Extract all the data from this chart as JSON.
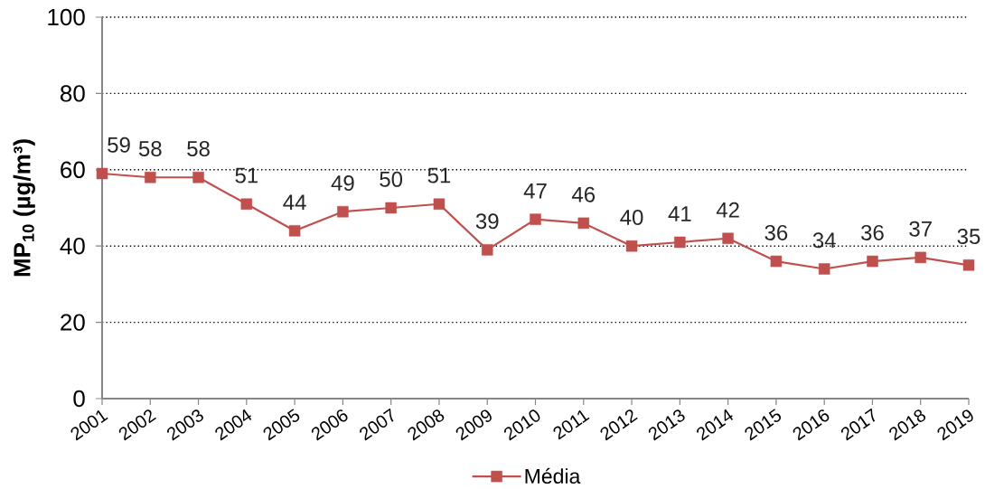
{
  "chart_data": {
    "type": "line",
    "ylabel": "MP$_{10}$ (µg/m³)",
    "categories": [
      "2001",
      "2002",
      "2003",
      "2004",
      "2005",
      "2006",
      "2007",
      "2008",
      "2009",
      "2010",
      "2011",
      "2012",
      "2013",
      "2014",
      "2015",
      "2016",
      "2017",
      "2018",
      "2019"
    ],
    "series": [
      {
        "name": "Média",
        "color": "#c0504d",
        "values": [
          59,
          58,
          58,
          51,
          44,
          49,
          50,
          51,
          39,
          47,
          46,
          40,
          41,
          42,
          36,
          34,
          36,
          37,
          35
        ]
      }
    ],
    "ylim": [
      0,
      100
    ],
    "yticks": [
      0,
      20,
      40,
      60,
      80,
      100
    ],
    "grid": "y",
    "legend": "bottom",
    "marker": "square",
    "line_style": "solid",
    "data_labels": true
  }
}
